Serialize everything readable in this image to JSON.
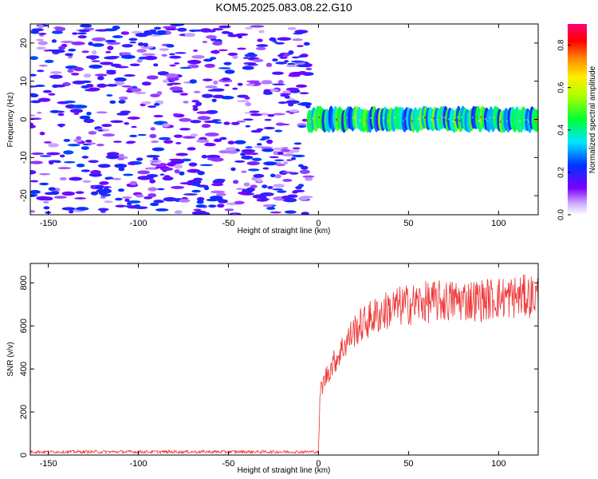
{
  "title": "KOM5.2025.083.08.22.G10",
  "chart_data": [
    {
      "type": "heatmap",
      "xlabel": "Height of straight line (km)",
      "ylabel": "Frequency (Hz)",
      "xlim": [
        -160,
        122
      ],
      "ylim": [
        -25,
        25
      ],
      "xticks": [
        -150,
        -100,
        -50,
        0,
        50,
        100
      ],
      "yticks": [
        -20,
        -10,
        0,
        10,
        20
      ],
      "colorbar": {
        "label": "Normalized spectral amplitude",
        "range": [
          0,
          0.9
        ],
        "ticks": [
          0.0,
          0.2,
          0.4,
          0.6,
          0.8
        ]
      },
      "features": {
        "noise_region_x": [
          -160,
          -5
        ],
        "noise_amplitude": [
          0.05,
          0.25
        ],
        "signal_region_x": [
          -5,
          122
        ],
        "signal_frequency_hz": 0,
        "signal_bandwidth_hz": 3,
        "signal_amplitude": [
          0.3,
          0.9
        ]
      }
    },
    {
      "type": "line",
      "xlabel": "Height of straight line (km)",
      "ylabel": "SNR (v/v)",
      "xlim": [
        -160,
        122
      ],
      "ylim": [
        0,
        890
      ],
      "xticks": [
        -150,
        -100,
        -50,
        0,
        50,
        100
      ],
      "yticks": [
        0,
        200,
        400,
        600,
        800
      ],
      "color": "#ee3333",
      "series": [
        {
          "x": [
            -160,
            -150,
            -100,
            -50,
            0,
            1,
            5,
            10,
            15,
            20,
            30,
            40,
            50,
            60,
            70,
            80,
            90,
            100,
            110,
            122
          ],
          "y": [
            15,
            15,
            15,
            15,
            15,
            300,
            380,
            450,
            520,
            580,
            640,
            680,
            700,
            710,
            715,
            720,
            720,
            730,
            735,
            740
          ]
        }
      ]
    }
  ]
}
